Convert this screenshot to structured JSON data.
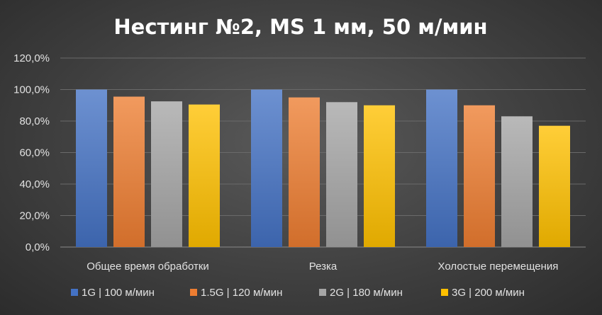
{
  "chart_data": {
    "type": "bar",
    "title": "Нестинг №2, MS 1 мм, 50 м/мин",
    "categories": [
      "Общее время обработки",
      "Резка",
      "Холостые перемещения"
    ],
    "series": [
      {
        "name": "1G | 100 м/мин",
        "color": "#4472C4",
        "values": [
          100,
          100,
          100
        ]
      },
      {
        "name": "1.5G | 120 м/мин",
        "color": "#ED7D31",
        "values": [
          95.5,
          95,
          90
        ]
      },
      {
        "name": "2G | 180 м/мин",
        "color": "#A5A5A5",
        "values": [
          92.5,
          92,
          83
        ]
      },
      {
        "name": "3G | 200 м/мин",
        "color": "#FFC000",
        "values": [
          90.5,
          90,
          77
        ]
      }
    ],
    "ylim": [
      0,
      120
    ],
    "yticks": [
      "0,0%",
      "20,0%",
      "40,0%",
      "60,0%",
      "80,0%",
      "100,0%",
      "120,0%"
    ],
    "grid": true,
    "legend": "bottom"
  }
}
